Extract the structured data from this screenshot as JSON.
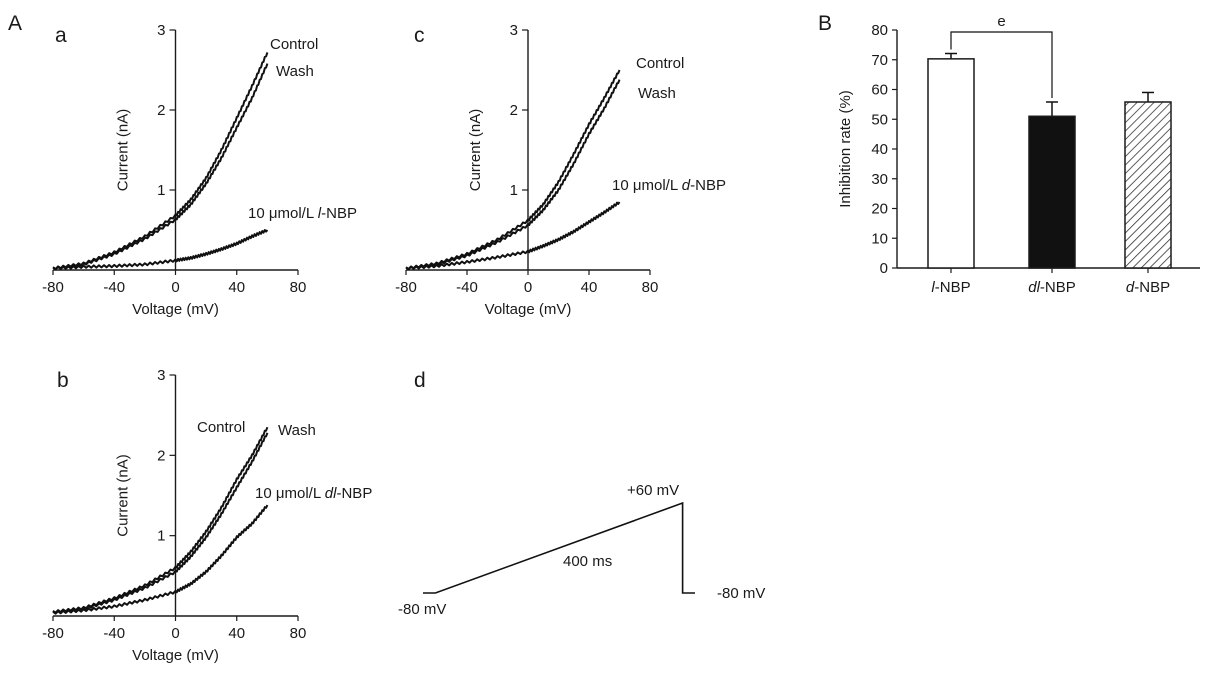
{
  "figure": {
    "panel_A_letter": "A",
    "panel_B_letter": "B"
  },
  "chart_data": [
    {
      "id": "a",
      "type": "line",
      "panel_label": "a",
      "xlabel": "Voltage (mV)",
      "ylabel": "Current (nA)",
      "xlim": [
        -80,
        80
      ],
      "ylim": [
        0,
        3
      ],
      "xticks": [
        "-80",
        "-40",
        "0",
        "40",
        "80"
      ],
      "yticks": [
        "1",
        "2",
        "3"
      ],
      "grid": false,
      "series": [
        {
          "name": "Control",
          "x": [
            -80,
            -60,
            -40,
            -20,
            0,
            10,
            20,
            30,
            40,
            50,
            60
          ],
          "y": [
            0.02,
            0.08,
            0.22,
            0.42,
            0.68,
            0.88,
            1.15,
            1.5,
            1.9,
            2.3,
            2.72
          ]
        },
        {
          "name": "Wash",
          "x": [
            -80,
            -60,
            -40,
            -20,
            0,
            10,
            20,
            30,
            40,
            50,
            60
          ],
          "y": [
            0.02,
            0.07,
            0.2,
            0.39,
            0.63,
            0.82,
            1.08,
            1.4,
            1.78,
            2.15,
            2.58
          ]
        },
        {
          "name": "10 μmol/L l-NBP",
          "x": [
            -80,
            -60,
            -40,
            -20,
            0,
            10,
            20,
            30,
            40,
            50,
            60
          ],
          "y": [
            0.02,
            0.04,
            0.05,
            0.07,
            0.12,
            0.15,
            0.2,
            0.26,
            0.33,
            0.42,
            0.5
          ]
        }
      ],
      "labels": [
        {
          "pre": "",
          "it": "",
          "post": "Control"
        },
        {
          "pre": "",
          "it": "",
          "post": "Wash"
        },
        {
          "pre": "10 μmol/L ",
          "it": "l",
          "post": "-NBP"
        }
      ]
    },
    {
      "id": "b",
      "type": "line",
      "panel_label": "b",
      "xlabel": "Voltage (mV)",
      "ylabel": "Current (nA)",
      "xlim": [
        -80,
        80
      ],
      "ylim": [
        0,
        3
      ],
      "xticks": [
        "-80",
        "-40",
        "0",
        "40",
        "80"
      ],
      "yticks": [
        "1",
        "2",
        "3"
      ],
      "grid": false,
      "series": [
        {
          "name": "Control",
          "x": [
            -80,
            -60,
            -40,
            -20,
            0,
            10,
            20,
            30,
            40,
            50,
            60
          ],
          "y": [
            0.05,
            0.1,
            0.22,
            0.38,
            0.6,
            0.8,
            1.05,
            1.35,
            1.7,
            2.0,
            2.35
          ]
        },
        {
          "name": "Wash",
          "x": [
            -80,
            -60,
            -40,
            -20,
            0,
            10,
            20,
            30,
            40,
            50,
            60
          ],
          "y": [
            0.05,
            0.09,
            0.2,
            0.35,
            0.55,
            0.74,
            0.98,
            1.27,
            1.6,
            1.92,
            2.28
          ]
        },
        {
          "name": "10 μmol/L dl-NBP",
          "x": [
            -80,
            -60,
            -40,
            -20,
            0,
            10,
            20,
            30,
            40,
            50,
            60
          ],
          "y": [
            0.04,
            0.07,
            0.12,
            0.2,
            0.3,
            0.4,
            0.55,
            0.75,
            0.98,
            1.15,
            1.38
          ]
        }
      ],
      "labels": [
        {
          "pre": "",
          "it": "",
          "post": "Control"
        },
        {
          "pre": "",
          "it": "",
          "post": "Wash"
        },
        {
          "pre": "10 μmol/L ",
          "it": "dl",
          "post": "-NBP"
        }
      ]
    },
    {
      "id": "c",
      "type": "line",
      "panel_label": "c",
      "xlabel": "Voltage (mV)",
      "ylabel": "Current (nA)",
      "xlim": [
        -80,
        80
      ],
      "ylim": [
        0,
        3
      ],
      "xticks": [
        "-80",
        "-40",
        "0",
        "40",
        "80"
      ],
      "yticks": [
        "1",
        "2",
        "3"
      ],
      "grid": false,
      "series": [
        {
          "name": "Control",
          "x": [
            -80,
            -60,
            -40,
            -20,
            0,
            10,
            20,
            30,
            40,
            50,
            60
          ],
          "y": [
            0.02,
            0.08,
            0.2,
            0.38,
            0.62,
            0.82,
            1.1,
            1.45,
            1.82,
            2.15,
            2.5
          ]
        },
        {
          "name": "Wash",
          "x": [
            -80,
            -60,
            -40,
            -20,
            0,
            10,
            20,
            30,
            40,
            50,
            60
          ],
          "y": [
            0.02,
            0.07,
            0.18,
            0.35,
            0.56,
            0.75,
            1.0,
            1.33,
            1.7,
            2.02,
            2.38
          ]
        },
        {
          "name": "10 μmol/L d-NBP",
          "x": [
            -80,
            -60,
            -40,
            -20,
            0,
            10,
            20,
            30,
            40,
            50,
            60
          ],
          "y": [
            0.02,
            0.05,
            0.1,
            0.16,
            0.23,
            0.3,
            0.38,
            0.48,
            0.6,
            0.72,
            0.85
          ]
        }
      ],
      "labels": [
        {
          "pre": "",
          "it": "",
          "post": "Control"
        },
        {
          "pre": "",
          "it": "",
          "post": "Wash"
        },
        {
          "pre": "10 μmol/L ",
          "it": "d",
          "post": "-NBP"
        }
      ]
    },
    {
      "id": "d",
      "type": "line",
      "panel_label": "d",
      "series": [
        {
          "x": [
            0,
            20,
            420,
            420,
            440
          ],
          "y": [
            -80,
            -80,
            60,
            -80,
            -80
          ]
        }
      ],
      "annotations": {
        "start": "-80 mV",
        "peak": "+60 mV",
        "end": "-80 mV",
        "duration": "400 ms"
      }
    },
    {
      "id": "B",
      "type": "bar",
      "ylabel": "Inhibition rate (%)",
      "ylim": [
        0,
        80
      ],
      "yticks": [
        "0",
        "10",
        "20",
        "30",
        "40",
        "50",
        "60",
        "70",
        "80"
      ],
      "categories": [
        {
          "it": "l",
          "post": "-NBP"
        },
        {
          "it": "dl",
          "post": "-NBP"
        },
        {
          "it": "d",
          "post": "-NBP"
        }
      ],
      "values": [
        70.3,
        51.0,
        55.8
      ],
      "errors": [
        1.8,
        4.8,
        3.2
      ],
      "fills": [
        "open",
        "solid",
        "hatched"
      ],
      "colors": {
        "bar_edge": "#1a1a1a",
        "solid": "#111111",
        "open": "#ffffff"
      },
      "significance": {
        "from": 0,
        "to": 1,
        "label": "e"
      },
      "grid": false
    }
  ]
}
